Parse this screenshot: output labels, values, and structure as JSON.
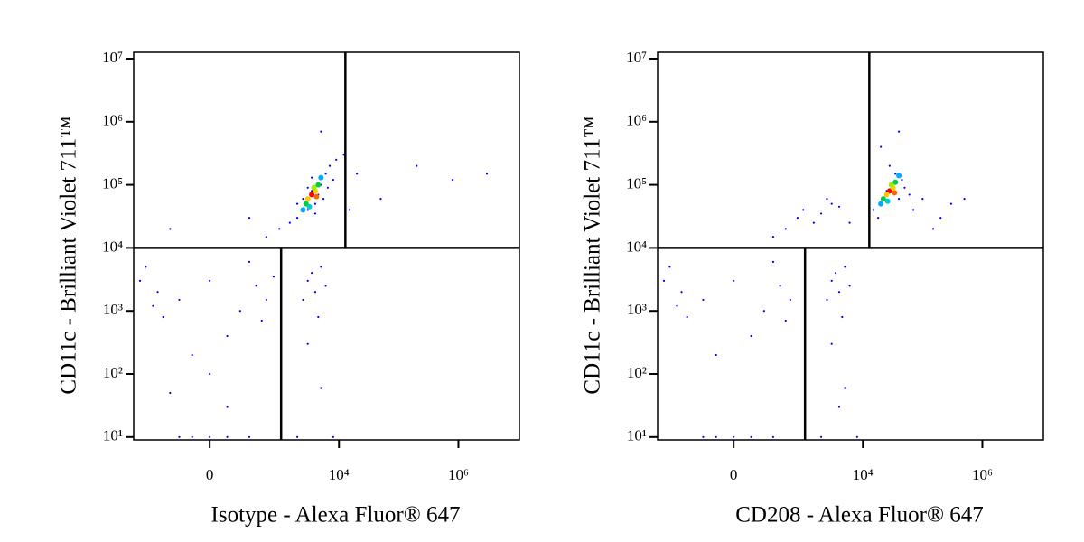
{
  "chart_data": [
    {
      "type": "scatter",
      "x_label": "Isotype - Alexa Fluor® 647",
      "y_label": "CD11c - Brilliant Violet 711™",
      "xscale": "biexponential",
      "yscale": "log",
      "xlim": [
        -1280,
        10500000
      ],
      "ylim": [
        9,
        12600000
      ],
      "xticks": [
        0,
        {
          "value": 10000,
          "label": "10⁴"
        },
        {
          "value": 1000000,
          "label": "10⁶"
        }
      ],
      "yticks": [
        {
          "value": 10,
          "label": "10¹"
        },
        {
          "value": 100,
          "label": "10²"
        },
        {
          "value": 1000,
          "label": "10³"
        },
        {
          "value": 10000,
          "label": "10⁴"
        },
        {
          "value": 100000,
          "label": "10⁵"
        },
        {
          "value": 1000000,
          "label": "10⁶"
        },
        {
          "value": 10000000,
          "label": "10⁷"
        }
      ],
      "gates": {
        "x_low": 1070,
        "x_high": 12800,
        "y": 10000
      },
      "color": "#0000ff",
      "x": [
        2500,
        3500,
        4000,
        5000,
        3000,
        6000,
        2000,
        4500,
        7000,
        1500,
        8000,
        3000,
        5500,
        2000,
        9000,
        1000,
        4000,
        6500,
        3500,
        12000,
        600,
        300,
        -300,
        15000,
        50000,
        200000,
        800000,
        20000,
        5000,
        3000000,
        -500,
        -200,
        0,
        200,
        -800,
        400,
        -400,
        100,
        -100,
        300,
        600,
        -600,
        0,
        -1000,
        500,
        800,
        -300,
        100,
        3000,
        4000,
        5000,
        2500,
        3500,
        6000,
        4500,
        3000,
        5000,
        -200,
        0,
        100,
        -100,
        300,
        2000,
        8000
      ],
      "y": [
        60000,
        80000,
        50000,
        100000,
        40000,
        150000,
        30000,
        70000,
        200000,
        25000,
        120000,
        90000,
        60000,
        50000,
        250000,
        20000,
        35000,
        90000,
        130000,
        300000,
        15000,
        30000,
        20000,
        40000,
        60000,
        200000,
        120000,
        150000,
        700000,
        150000,
        2000,
        1500,
        3000,
        1000,
        5000,
        2500,
        800,
        400,
        200,
        6000,
        1500,
        1200,
        100,
        3000,
        700,
        3500,
        50,
        30,
        3000,
        2000,
        5000,
        1500,
        4000,
        2500,
        800,
        300,
        60,
        10,
        10,
        10,
        10,
        10,
        10,
        10
      ],
      "core_x": [
        3500,
        3000,
        4000,
        2800,
        4500,
        3800,
        3200,
        2500,
        5000,
        4200
      ],
      "core_y": [
        70000,
        60000,
        80000,
        50000,
        100000,
        90000,
        45000,
        40000,
        130000,
        65000
      ],
      "core_colors": [
        "#ff0000",
        "#ffcc00",
        "#ffcc00",
        "#00cc44",
        "#00cc44",
        "#99ee00",
        "#00cccc",
        "#00aaff",
        "#00aaff",
        "#ff6600"
      ]
    },
    {
      "type": "scatter",
      "x_label": "CD208 - Alexa Fluor® 647",
      "y_label": "CD11c - Brilliant Violet 711™",
      "xscale": "biexponential",
      "yscale": "log",
      "xlim": [
        -1280,
        10500000
      ],
      "ylim": [
        9,
        12600000
      ],
      "xticks": [
        0,
        {
          "value": 10000,
          "label": "10⁴"
        },
        {
          "value": 1000000,
          "label": "10⁶"
        }
      ],
      "yticks": [
        {
          "value": 10,
          "label": "10¹"
        },
        {
          "value": 100,
          "label": "10²"
        },
        {
          "value": 1000,
          "label": "10³"
        },
        {
          "value": 10000,
          "label": "10⁴"
        },
        {
          "value": 100000,
          "label": "10⁵"
        },
        {
          "value": 1000000,
          "label": "10⁶"
        },
        {
          "value": 10000000,
          "label": "10⁷"
        }
      ],
      "gates": {
        "x_low": 1070,
        "x_high": 12800,
        "y": 10000
      },
      "color": "#0000ff",
      "x": [
        25000,
        30000,
        40000,
        20000,
        35000,
        50000,
        18000,
        28000,
        60000,
        45000,
        15000,
        70000,
        100000,
        200000,
        300000,
        150000,
        500000,
        1000,
        2000,
        3000,
        1500,
        2500,
        800,
        4000,
        500,
        300,
        6000,
        -500,
        -200,
        0,
        200,
        -800,
        400,
        -400,
        100,
        -100,
        300,
        600,
        -600,
        -1000,
        500,
        3000,
        4000,
        5000,
        2500,
        3500,
        6000,
        4500,
        3000,
        5000,
        4000,
        -200,
        0,
        100,
        -100,
        300,
        2000,
        8000,
        20000,
        40000
      ],
      "y": [
        80000,
        100000,
        60000,
        50000,
        150000,
        90000,
        30000,
        200000,
        70000,
        120000,
        40000,
        40000,
        60000,
        30000,
        50000,
        20000,
        60000,
        40000,
        35000,
        50000,
        25000,
        60000,
        30000,
        45000,
        20000,
        15000,
        25000,
        2000,
        1500,
        3000,
        1000,
        5000,
        2500,
        800,
        400,
        200,
        6000,
        1500,
        1200,
        3000,
        700,
        3000,
        2000,
        5000,
        1500,
        4000,
        2500,
        800,
        300,
        60,
        30,
        10,
        10,
        10,
        10,
        10,
        10,
        10,
        400000,
        700000
      ],
      "core_x": [
        28000,
        25000,
        32000,
        22000,
        35000,
        30000,
        26000,
        20000,
        40000,
        34000
      ],
      "core_y": [
        80000,
        70000,
        90000,
        60000,
        110000,
        100000,
        55000,
        50000,
        140000,
        75000
      ],
      "core_colors": [
        "#ff0000",
        "#ffcc00",
        "#ffcc00",
        "#00cc44",
        "#00cc44",
        "#99ee00",
        "#00cccc",
        "#00aaff",
        "#00aaff",
        "#ff6600"
      ]
    }
  ]
}
